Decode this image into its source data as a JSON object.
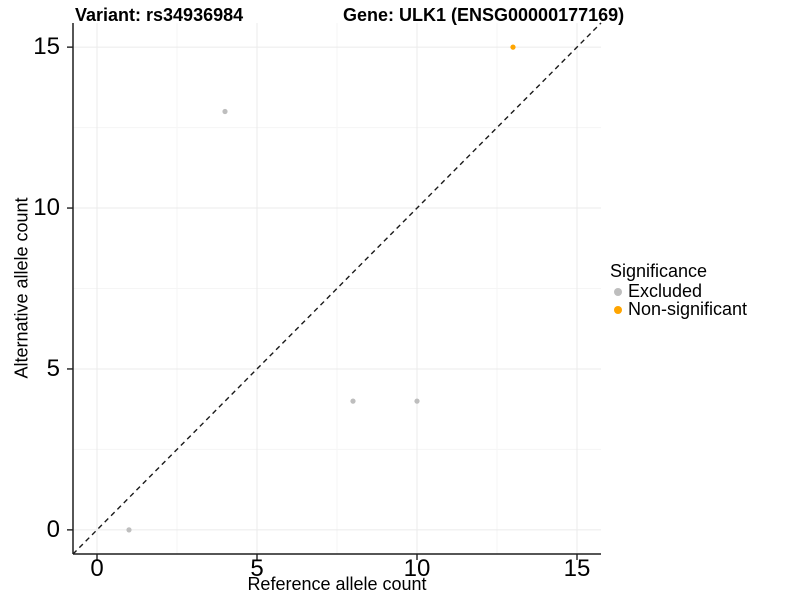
{
  "titles": {
    "variant": "Variant: rs34936984",
    "gene": "Gene: ULK1 (ENSG00000177169)"
  },
  "axes": {
    "x": {
      "label": "Reference allele count",
      "ticks": [
        0,
        5,
        10,
        15
      ],
      "minor_ticks": [
        2.5,
        7.5,
        12.5
      ],
      "range": [
        -0.75,
        15.75
      ]
    },
    "y": {
      "label": "Alternative allele count",
      "ticks": [
        0,
        5,
        10,
        15
      ],
      "minor_ticks": [
        2.5,
        7.5,
        12.5
      ],
      "range": [
        -0.75,
        15.75
      ]
    }
  },
  "legend": {
    "title": "Significance",
    "position": "right",
    "items": [
      {
        "label": "Excluded",
        "color": "#BEBEBE"
      },
      {
        "label": "Non-significant",
        "color": "#FFA500"
      }
    ]
  },
  "colors": {
    "excluded": "#BEBEBE",
    "non_significant": "#FFA500",
    "grid_major": "#EBEBEB",
    "grid_minor": "#F5F5F5",
    "axis_line": "#1F1F1F",
    "identity_line": "#1A1A1A",
    "background": "#FFFFFF"
  },
  "chart_data": {
    "type": "scatter",
    "title": "Variant: rs34936984   Gene: ULK1 (ENSG00000177169)",
    "xlabel": "Reference allele count",
    "ylabel": "Alternative allele count",
    "xlim": [
      -0.75,
      15.75
    ],
    "ylim": [
      -0.75,
      15.75
    ],
    "x_major_ticks": [
      0,
      5,
      10,
      15
    ],
    "y_major_ticks": [
      0,
      5,
      10,
      15
    ],
    "grid": true,
    "identity_line": {
      "style": "dashed",
      "from": [
        -0.75,
        -0.75
      ],
      "to": [
        15.75,
        15.75
      ]
    },
    "legend_title": "Significance",
    "legend_position": "right",
    "series": [
      {
        "name": "Excluded",
        "color": "#BEBEBE",
        "points": [
          [
            1,
            0
          ],
          [
            4,
            13
          ],
          [
            8,
            4
          ],
          [
            10,
            4
          ]
        ]
      },
      {
        "name": "Non-significant",
        "color": "#FFA500",
        "points": [
          [
            13,
            15
          ]
        ]
      }
    ]
  }
}
